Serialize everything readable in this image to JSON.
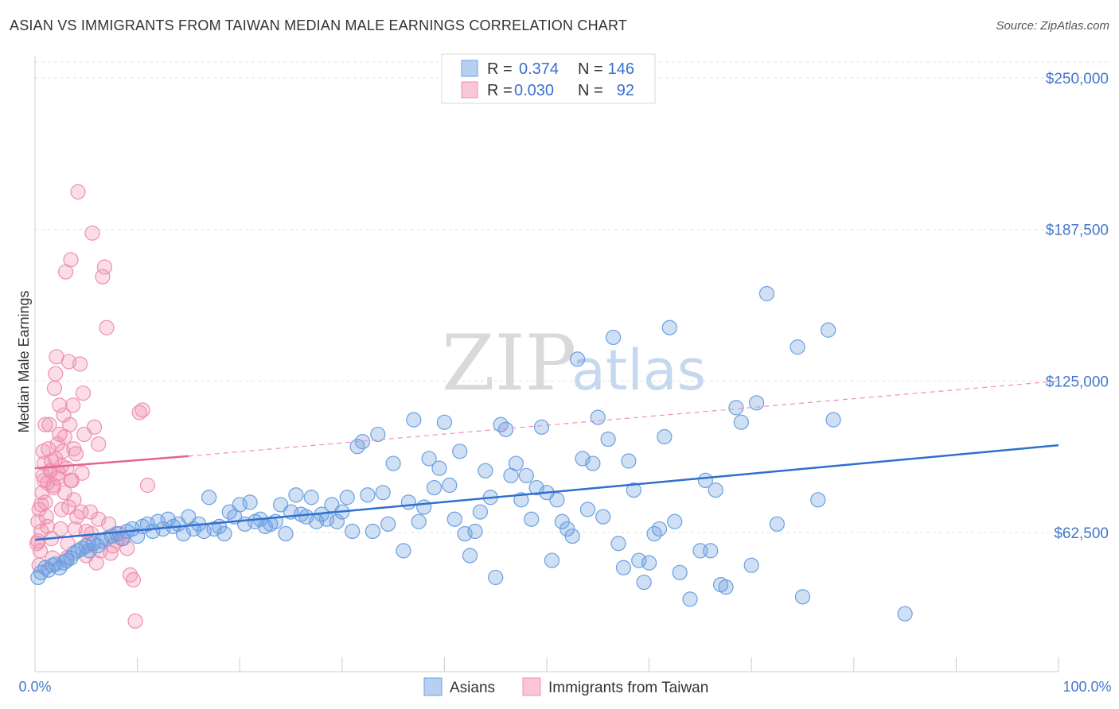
{
  "header": {
    "title": "ASIAN VS IMMIGRANTS FROM TAIWAN MEDIAN MALE EARNINGS CORRELATION CHART",
    "source": "Source: ZipAtlas.com"
  },
  "watermark": {
    "zip": "ZIP",
    "atlas": "atlas"
  },
  "legend": {
    "rows": [
      {
        "r_label": "R =",
        "r_value": "0.374",
        "n_label": "N =",
        "n_value": "146"
      },
      {
        "r_label": "R =",
        "r_value": "0.030",
        "n_label": "N =",
        "n_value": "92"
      }
    ]
  },
  "chart_data": {
    "type": "scatter",
    "title": "ASIAN VS IMMIGRANTS FROM TAIWAN MEDIAN MALE EARNINGS CORRELATION CHART",
    "ylabel": "Median Male Earnings",
    "xlabel": "",
    "xlim": [
      0,
      100
    ],
    "ylim": [
      15000,
      265000
    ],
    "x_tick_labels": [
      "0.0%",
      "100.0%"
    ],
    "y_ticks": [
      {
        "value": 62500,
        "label": "$62,500"
      },
      {
        "value": 125000,
        "label": "$125,000"
      },
      {
        "value": 187500,
        "label": "$187,500"
      },
      {
        "value": 250000,
        "label": "$250,000"
      }
    ],
    "series": [
      {
        "name": "Asians",
        "color": "#6b9ee0",
        "r": 0.374,
        "n": 146,
        "trend": {
          "x": [
            0,
            100
          ],
          "y": [
            59500,
            98500
          ]
        },
        "points": [
          [
            0.3,
            44000
          ],
          [
            0.6,
            46000
          ],
          [
            1.0,
            48000
          ],
          [
            1.3,
            47000
          ],
          [
            1.7,
            49000
          ],
          [
            2.0,
            49500
          ],
          [
            2.4,
            48000
          ],
          [
            2.8,
            50000
          ],
          [
            3.1,
            51000
          ],
          [
            3.5,
            52000
          ],
          [
            3.8,
            54000
          ],
          [
            4.2,
            55000
          ],
          [
            4.6,
            56000
          ],
          [
            5.0,
            57000
          ],
          [
            5.3,
            55000
          ],
          [
            5.7,
            58000
          ],
          [
            6.1,
            57000
          ],
          [
            6.5,
            59000
          ],
          [
            7.0,
            60000
          ],
          [
            7.5,
            61000
          ],
          [
            8.0,
            62000
          ],
          [
            8.5,
            60000
          ],
          [
            9.0,
            63000
          ],
          [
            9.5,
            64000
          ],
          [
            10.0,
            61000
          ],
          [
            10.5,
            65000
          ],
          [
            11.0,
            66000
          ],
          [
            11.5,
            63000
          ],
          [
            12.0,
            67000
          ],
          [
            12.5,
            64000
          ],
          [
            13.0,
            68000
          ],
          [
            13.5,
            65000
          ],
          [
            14.0,
            66000
          ],
          [
            14.5,
            62000
          ],
          [
            15.0,
            69000
          ],
          [
            15.5,
            64000
          ],
          [
            16.0,
            66000
          ],
          [
            16.5,
            63000
          ],
          [
            17.0,
            77000
          ],
          [
            17.5,
            64000
          ],
          [
            18.0,
            65000
          ],
          [
            18.5,
            62000
          ],
          [
            19.0,
            71000
          ],
          [
            19.5,
            69000
          ],
          [
            20.0,
            74000
          ],
          [
            20.5,
            66000
          ],
          [
            21.0,
            75000
          ],
          [
            21.5,
            67000
          ],
          [
            22.0,
            68000
          ],
          [
            22.5,
            65000
          ],
          [
            23.0,
            66000
          ],
          [
            23.5,
            67000
          ],
          [
            24.0,
            74000
          ],
          [
            24.5,
            62000
          ],
          [
            25.0,
            71000
          ],
          [
            25.5,
            78000
          ],
          [
            26.0,
            70000
          ],
          [
            26.5,
            69000
          ],
          [
            27.0,
            77000
          ],
          [
            27.5,
            67000
          ],
          [
            28.0,
            70000
          ],
          [
            28.5,
            68000
          ],
          [
            29.0,
            74000
          ],
          [
            29.5,
            67000
          ],
          [
            30.0,
            71000
          ],
          [
            30.5,
            77000
          ],
          [
            31.0,
            63000
          ],
          [
            31.5,
            98000
          ],
          [
            32.0,
            100000
          ],
          [
            32.5,
            78000
          ],
          [
            33.0,
            63000
          ],
          [
            33.5,
            103000
          ],
          [
            34.0,
            79000
          ],
          [
            34.5,
            66000
          ],
          [
            35.0,
            91000
          ],
          [
            36.0,
            55000
          ],
          [
            36.5,
            75000
          ],
          [
            37.0,
            109000
          ],
          [
            37.5,
            67000
          ],
          [
            38.0,
            73000
          ],
          [
            38.5,
            93000
          ],
          [
            39.0,
            81000
          ],
          [
            39.5,
            89000
          ],
          [
            40.0,
            108000
          ],
          [
            40.5,
            82000
          ],
          [
            41.0,
            68000
          ],
          [
            41.5,
            96000
          ],
          [
            42.0,
            62000
          ],
          [
            42.5,
            53000
          ],
          [
            43.0,
            63000
          ],
          [
            43.5,
            71000
          ],
          [
            44.0,
            88000
          ],
          [
            44.5,
            77000
          ],
          [
            45.0,
            44000
          ],
          [
            45.5,
            107000
          ],
          [
            46.0,
            105000
          ],
          [
            46.5,
            86000
          ],
          [
            47.0,
            91000
          ],
          [
            47.5,
            76000
          ],
          [
            48.0,
            86000
          ],
          [
            48.5,
            68000
          ],
          [
            49.0,
            81000
          ],
          [
            49.5,
            106000
          ],
          [
            50.0,
            79000
          ],
          [
            50.5,
            51000
          ],
          [
            51.0,
            76000
          ],
          [
            51.5,
            67000
          ],
          [
            52.0,
            64000
          ],
          [
            52.5,
            61000
          ],
          [
            53.0,
            134000
          ],
          [
            53.5,
            93000
          ],
          [
            54.0,
            72000
          ],
          [
            54.5,
            91000
          ],
          [
            55.0,
            110000
          ],
          [
            55.5,
            69000
          ],
          [
            56.0,
            101000
          ],
          [
            56.5,
            143000
          ],
          [
            57.0,
            58000
          ],
          [
            57.5,
            48000
          ],
          [
            58.0,
            92000
          ],
          [
            58.5,
            80000
          ],
          [
            59.0,
            51000
          ],
          [
            59.5,
            42000
          ],
          [
            60.0,
            50000
          ],
          [
            60.5,
            62000
          ],
          [
            61.0,
            64000
          ],
          [
            61.5,
            102000
          ],
          [
            62.0,
            147000
          ],
          [
            62.5,
            67000
          ],
          [
            63.0,
            46000
          ],
          [
            64.0,
            35000
          ],
          [
            65.0,
            55000
          ],
          [
            65.5,
            84000
          ],
          [
            66.0,
            55000
          ],
          [
            66.5,
            80000
          ],
          [
            67.0,
            41000
          ],
          [
            67.5,
            40000
          ],
          [
            68.5,
            114000
          ],
          [
            69.0,
            108000
          ],
          [
            70.0,
            49000
          ],
          [
            70.5,
            116000
          ],
          [
            71.5,
            161000
          ],
          [
            72.5,
            66000
          ],
          [
            74.5,
            139000
          ],
          [
            75.0,
            36000
          ],
          [
            76.5,
            76000
          ],
          [
            77.5,
            146000
          ],
          [
            78.0,
            109000
          ],
          [
            85.0,
            29000
          ]
        ]
      },
      {
        "name": "Immigrants from Taiwan",
        "color": "#ef8fb0",
        "r": 0.03,
        "n": 92,
        "trend": {
          "x": [
            0,
            15
          ],
          "y": [
            89000,
            94000
          ],
          "dashed_to": [
            100,
            125000
          ]
        },
        "points": [
          [
            0.2,
            58000
          ],
          [
            0.3,
            67000
          ],
          [
            0.4,
            72000
          ],
          [
            0.5,
            55000
          ],
          [
            0.6,
            63000
          ],
          [
            0.7,
            79000
          ],
          [
            0.8,
            86000
          ],
          [
            0.9,
            91000
          ],
          [
            1.0,
            75000
          ],
          [
            1.1,
            69000
          ],
          [
            1.2,
            83000
          ],
          [
            1.3,
            97000
          ],
          [
            1.4,
            107000
          ],
          [
            1.5,
            88000
          ],
          [
            1.6,
            60000
          ],
          [
            1.7,
            52000
          ],
          [
            1.8,
            82000
          ],
          [
            1.9,
            122000
          ],
          [
            2.0,
            93000
          ],
          [
            2.1,
            135000
          ],
          [
            2.2,
            99000
          ],
          [
            2.3,
            87000
          ],
          [
            2.4,
            103000
          ],
          [
            2.5,
            64000
          ],
          [
            2.6,
            72000
          ],
          [
            2.7,
            96000
          ],
          [
            2.8,
            111000
          ],
          [
            2.9,
            79000
          ],
          [
            3.0,
            170000
          ],
          [
            3.1,
            89000
          ],
          [
            3.2,
            58000
          ],
          [
            3.3,
            133000
          ],
          [
            3.4,
            107000
          ],
          [
            3.5,
            175000
          ],
          [
            3.6,
            84000
          ],
          [
            3.7,
            115000
          ],
          [
            3.8,
            76000
          ],
          [
            3.9,
            64000
          ],
          [
            4.0,
            95000
          ],
          [
            4.1,
            69000
          ],
          [
            4.2,
            203000
          ],
          [
            4.4,
            132000
          ],
          [
            4.6,
            87000
          ],
          [
            4.8,
            103000
          ],
          [
            5.0,
            53000
          ],
          [
            5.2,
            58000
          ],
          [
            5.4,
            71000
          ],
          [
            5.6,
            186000
          ],
          [
            5.8,
            106000
          ],
          [
            6.0,
            50000
          ],
          [
            6.2,
            99000
          ],
          [
            6.4,
            55000
          ],
          [
            6.6,
            168000
          ],
          [
            6.8,
            172000
          ],
          [
            7.0,
            147000
          ],
          [
            7.2,
            66000
          ],
          [
            7.4,
            54000
          ],
          [
            7.6,
            57000
          ],
          [
            8.0,
            59000
          ],
          [
            8.3,
            62000
          ],
          [
            8.6,
            60000
          ],
          [
            9.0,
            56000
          ],
          [
            9.3,
            45000
          ],
          [
            9.6,
            43000
          ],
          [
            9.8,
            26000
          ],
          [
            10.2,
            112000
          ],
          [
            10.5,
            113000
          ],
          [
            11.0,
            82000
          ],
          [
            1.5,
            88000
          ],
          [
            2.2,
            85000
          ],
          [
            0.9,
            84000
          ],
          [
            1.8,
            81000
          ],
          [
            3.5,
            84000
          ],
          [
            4.5,
            71000
          ],
          [
            2.6,
            90000
          ],
          [
            1.2,
            65000
          ],
          [
            0.6,
            74000
          ],
          [
            2.9,
            102000
          ],
          [
            3.3,
            73000
          ],
          [
            0.4,
            49000
          ],
          [
            1.0,
            107000
          ],
          [
            5.0,
            63000
          ],
          [
            2.0,
            128000
          ],
          [
            4.7,
            120000
          ],
          [
            0.8,
            96000
          ],
          [
            3.1,
            52000
          ],
          [
            6.2,
            68000
          ],
          [
            1.6,
            92000
          ],
          [
            2.4,
            115000
          ],
          [
            3.8,
            97000
          ],
          [
            0.3,
            59000
          ],
          [
            5.5,
            62000
          ]
        ]
      }
    ]
  }
}
